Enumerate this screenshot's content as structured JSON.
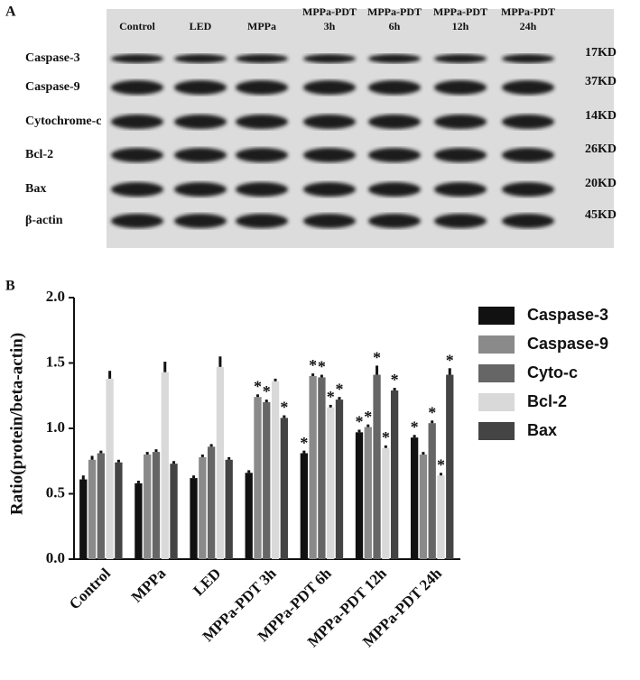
{
  "panel_a": {
    "label": "A",
    "lanes": [
      [
        "Control"
      ],
      [
        "LED"
      ],
      [
        "MPPa"
      ],
      [
        "MPPa-PDT",
        "3h"
      ],
      [
        "MPPa-PDT",
        "6h"
      ],
      [
        "MPPa-PDT",
        "12h"
      ],
      [
        "MPPa-PDT",
        "24h"
      ]
    ],
    "proteins": [
      "Caspase-3",
      "Caspase-9",
      "Cytochrome-c",
      "Bcl-2",
      "Bax",
      "β-actin"
    ],
    "sizes": [
      "17KD",
      "37KD",
      "14KD",
      "26KD",
      "20KD",
      "45KD"
    ]
  },
  "chart_data": {
    "type": "bar",
    "panel_label": "B",
    "y_label": "Ratio(protein/beta-actin)",
    "categories": [
      "Control",
      "MPPa",
      "LED",
      "MPPa-PDT 3h",
      "MPPa-PDT 6h",
      "MPPa-PDT 12h",
      "MPPa-PDT 24h"
    ],
    "ylim": [
      0,
      2
    ],
    "yticks": [
      {
        "value": 0,
        "label": "0.0"
      },
      {
        "value": 0.5,
        "label": "0.5"
      },
      {
        "value": 1,
        "label": "1.0"
      },
      {
        "value": 1.5,
        "label": "1.5"
      },
      {
        "value": 2,
        "label": "2.0"
      }
    ],
    "legend": "right",
    "series": [
      {
        "name": "Caspase-3",
        "color": "#111111",
        "values": [
          0.61,
          0.58,
          0.62,
          0.66,
          0.81,
          0.97,
          0.93
        ],
        "errors": [
          0.03,
          0.02,
          0.02,
          0.02,
          0.02,
          0.02,
          0.02
        ],
        "markers": [
          null,
          null,
          null,
          null,
          "*",
          "*",
          "*"
        ]
      },
      {
        "name": "Caspase-9",
        "color": "#8a8a8a",
        "values": [
          0.76,
          0.8,
          0.78,
          1.24,
          1.4,
          1.01,
          0.8
        ],
        "errors": [
          0.03,
          0.02,
          0.02,
          0.02,
          0.02,
          0.02,
          0.02
        ],
        "markers": [
          null,
          null,
          null,
          "*",
          "*",
          "*",
          null
        ]
      },
      {
        "name": "Cyto-c",
        "color": "#666666",
        "values": [
          0.81,
          0.82,
          0.86,
          1.2,
          1.39,
          1.41,
          1.04
        ],
        "errors": [
          0.02,
          0.02,
          0.02,
          0.02,
          0.02,
          0.07,
          0.02
        ],
        "markers": [
          null,
          null,
          null,
          "*",
          "*",
          "*",
          "*"
        ]
      },
      {
        "name": "Bcl-2",
        "color": "#d9d9d9",
        "values": [
          1.38,
          1.43,
          1.47,
          1.36,
          1.16,
          0.85,
          0.64
        ],
        "errors": [
          0.06,
          0.08,
          0.08,
          0.02,
          0.02,
          0.02,
          0.02
        ],
        "markers": [
          null,
          null,
          null,
          null,
          "*",
          "*",
          "*"
        ]
      },
      {
        "name": "Bax",
        "color": "#444444",
        "values": [
          0.74,
          0.73,
          0.76,
          1.08,
          1.22,
          1.29,
          1.41
        ],
        "errors": [
          0.02,
          0.02,
          0.02,
          0.02,
          0.02,
          0.02,
          0.05
        ],
        "markers": [
          null,
          null,
          null,
          "*",
          "*",
          "*",
          "*"
        ]
      }
    ]
  }
}
